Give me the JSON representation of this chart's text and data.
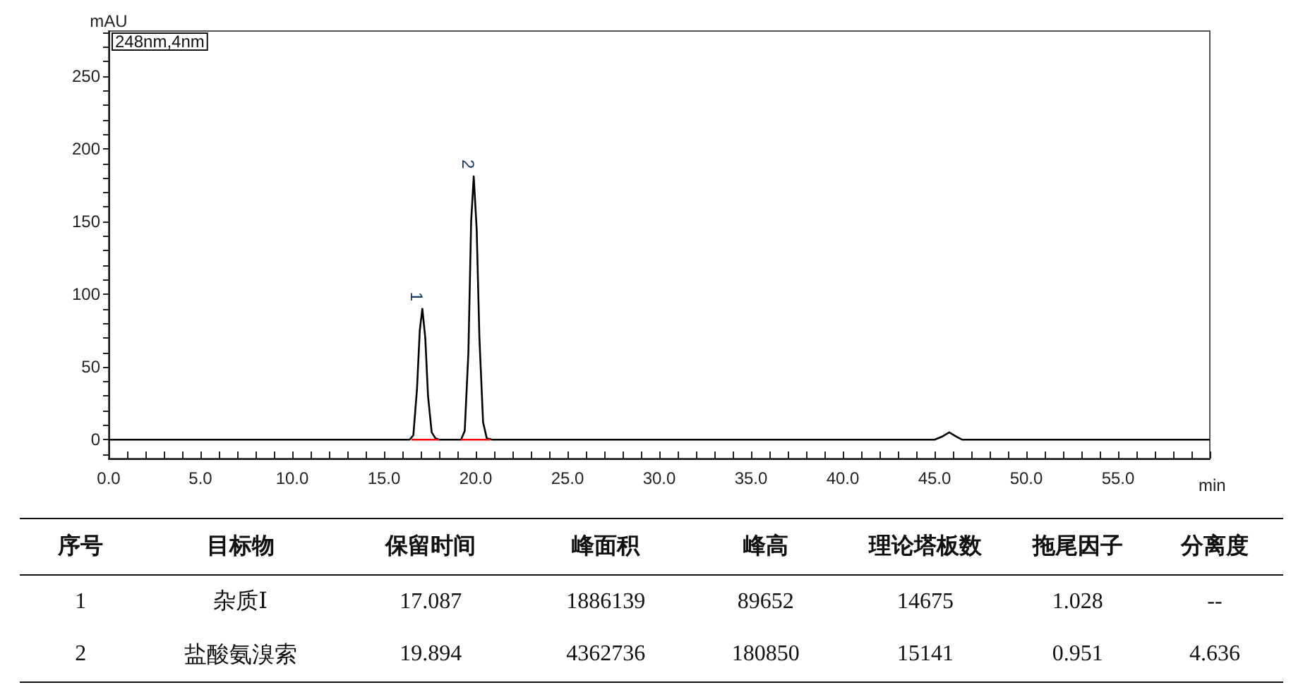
{
  "chart_data": {
    "type": "line",
    "xlabel": "min",
    "ylabel": "mAU",
    "xlim": [
      0,
      60
    ],
    "ylim": [
      -13,
      281
    ],
    "xticks": [
      {
        "value": 0,
        "label": "0.0"
      },
      {
        "value": 1,
        "label": null
      },
      {
        "value": 2,
        "label": null
      },
      {
        "value": 3,
        "label": null
      },
      {
        "value": 4,
        "label": null
      },
      {
        "value": 5,
        "label": "5.0"
      },
      {
        "value": 6,
        "label": null
      },
      {
        "value": 7,
        "label": null
      },
      {
        "value": 8,
        "label": null
      },
      {
        "value": 9,
        "label": null
      },
      {
        "value": 10,
        "label": "10.0"
      },
      {
        "value": 11,
        "label": null
      },
      {
        "value": 12,
        "label": null
      },
      {
        "value": 13,
        "label": null
      },
      {
        "value": 14,
        "label": null
      },
      {
        "value": 15,
        "label": "15.0"
      },
      {
        "value": 16,
        "label": null
      },
      {
        "value": 17,
        "label": null
      },
      {
        "value": 18,
        "label": null
      },
      {
        "value": 19,
        "label": null
      },
      {
        "value": 20,
        "label": "20.0"
      },
      {
        "value": 21,
        "label": null
      },
      {
        "value": 22,
        "label": null
      },
      {
        "value": 23,
        "label": null
      },
      {
        "value": 24,
        "label": null
      },
      {
        "value": 25,
        "label": "25.0"
      },
      {
        "value": 26,
        "label": null
      },
      {
        "value": 27,
        "label": null
      },
      {
        "value": 28,
        "label": null
      },
      {
        "value": 29,
        "label": null
      },
      {
        "value": 30,
        "label": "30.0"
      },
      {
        "value": 31,
        "label": null
      },
      {
        "value": 32,
        "label": null
      },
      {
        "value": 33,
        "label": null
      },
      {
        "value": 34,
        "label": null
      },
      {
        "value": 35,
        "label": "35.0"
      },
      {
        "value": 36,
        "label": null
      },
      {
        "value": 37,
        "label": null
      },
      {
        "value": 38,
        "label": null
      },
      {
        "value": 39,
        "label": null
      },
      {
        "value": 40,
        "label": "40.0"
      },
      {
        "value": 41,
        "label": null
      },
      {
        "value": 42,
        "label": null
      },
      {
        "value": 43,
        "label": null
      },
      {
        "value": 44,
        "label": null
      },
      {
        "value": 45,
        "label": "45.0"
      },
      {
        "value": 46,
        "label": null
      },
      {
        "value": 47,
        "label": null
      },
      {
        "value": 48,
        "label": null
      },
      {
        "value": 49,
        "label": null
      },
      {
        "value": 50,
        "label": "50.0"
      },
      {
        "value": 51,
        "label": null
      },
      {
        "value": 52,
        "label": null
      },
      {
        "value": 53,
        "label": null
      },
      {
        "value": 54,
        "label": null
      },
      {
        "value": 55,
        "label": "55.0"
      },
      {
        "value": 56,
        "label": null
      },
      {
        "value": 57,
        "label": null
      },
      {
        "value": 58,
        "label": null
      },
      {
        "value": 59,
        "label": null
      },
      {
        "value": 60,
        "label": null
      }
    ],
    "yticks": [
      {
        "value": -10,
        "label": null
      },
      0,
      {
        "value": 10,
        "label": null
      },
      {
        "value": 20,
        "label": null
      },
      {
        "value": 30,
        "label": null
      },
      {
        "value": 40,
        "label": null
      },
      50,
      {
        "value": 60,
        "label": null
      },
      {
        "value": 70,
        "label": null
      },
      {
        "value": 80,
        "label": null
      },
      {
        "value": 90,
        "label": null
      },
      100,
      {
        "value": 110,
        "label": null
      },
      {
        "value": 120,
        "label": null
      },
      {
        "value": 130,
        "label": null
      },
      {
        "value": 140,
        "label": null
      },
      150,
      {
        "value": 160,
        "label": null
      },
      {
        "value": 170,
        "label": null
      },
      {
        "value": 180,
        "label": null
      },
      {
        "value": 190,
        "label": null
      },
      200,
      {
        "value": 210,
        "label": null
      },
      {
        "value": 220,
        "label": null
      },
      {
        "value": 230,
        "label": null
      },
      {
        "value": 240,
        "label": null
      },
      250,
      {
        "value": 260,
        "label": null
      },
      {
        "value": 270,
        "label": null
      },
      {
        "value": 280,
        "label": null
      }
    ],
    "grid": false,
    "marker": "none",
    "line_style": "solid",
    "series": [
      {
        "color": "#000000",
        "x": [
          0,
          16.4,
          16.6,
          16.8,
          16.95,
          17.09,
          17.25,
          17.4,
          17.6,
          17.8,
          18,
          19.2,
          19.4,
          19.6,
          19.75,
          19.89,
          20.05,
          20.2,
          20.4,
          20.6,
          20.9,
          45,
          45.4,
          45.8,
          46.2,
          46.5,
          60
        ],
        "values": [
          0,
          0,
          3,
          35,
          75,
          90,
          70,
          30,
          5,
          1,
          0,
          0,
          6,
          60,
          150,
          181,
          145,
          70,
          12,
          1,
          0,
          0,
          2,
          5,
          2,
          0,
          0
        ]
      },
      {
        "color": "#ff0000",
        "x": [
          16.5,
          18,
          18.5,
          19.2,
          20.8
        ],
        "values": [
          0,
          0,
          null,
          0,
          0
        ]
      }
    ],
    "annotations": [
      "248nm,4nm",
      {
        "text": "1",
        "x": 17.09,
        "y": 90
      },
      {
        "text": "2",
        "x": 19.89,
        "y": 181
      },
      "序号",
      "目标物",
      "保留时间",
      "峰面积",
      "峰高",
      "理论塔板数",
      "拖尾因子",
      "分离度",
      "1",
      "杂质Ⅰ",
      "17.087",
      "1886139",
      "89652",
      "14675",
      "1.028",
      "--",
      "2",
      "盐酸氨溴索",
      "19.894",
      "4362736",
      "180850",
      "15141",
      "0.951",
      "4.636"
    ]
  }
}
